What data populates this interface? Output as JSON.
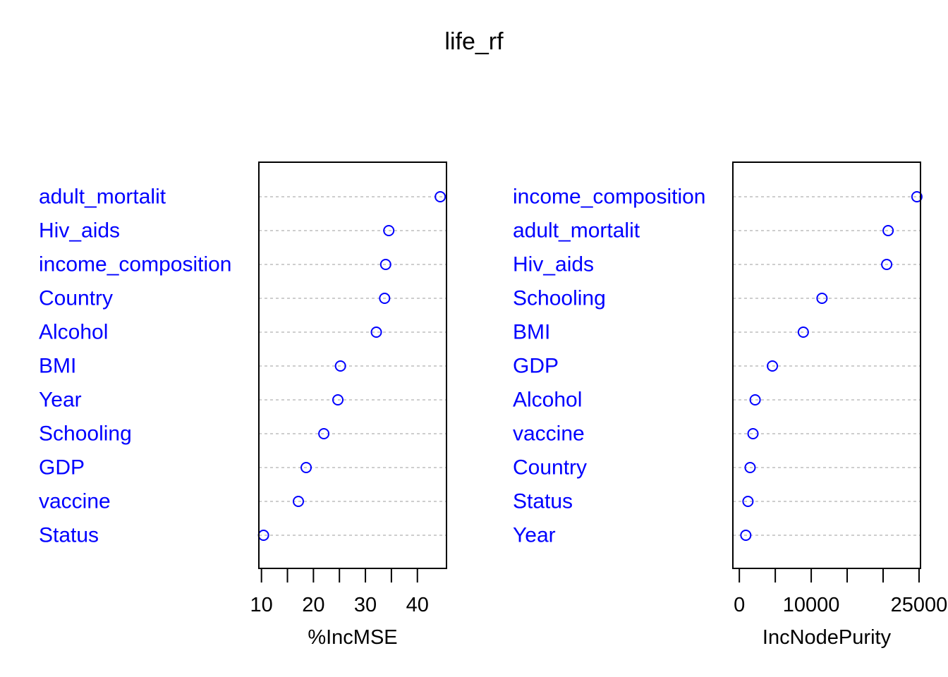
{
  "chart_data": {
    "title": "life_rf",
    "colors": {
      "labels": "#0000ff",
      "points": "#0000ff",
      "dotted_lines": "#bebebe",
      "axes": "#000000"
    },
    "panels": [
      {
        "type": "scatter",
        "variant": "dotchart",
        "xlabel": "%IncMSE",
        "xlim": [
          9.5,
          45.6
        ],
        "xticks": [
          10,
          15,
          20,
          25,
          30,
          35,
          40
        ],
        "xtick_labels": [
          "10",
          "",
          "20",
          "",
          "30",
          "",
          "40"
        ],
        "categories": [
          "adult_mortalit",
          "Hiv_aids",
          "income_composition",
          "Country",
          "Alcohol",
          "BMI",
          "Year",
          "Schooling",
          "GDP",
          "vaccine",
          "Status"
        ],
        "values": [
          44.4,
          34.5,
          33.9,
          33.7,
          32.1,
          25.2,
          24.7,
          22.0,
          18.6,
          17.1,
          10.4
        ]
      },
      {
        "type": "scatter",
        "variant": "dotchart",
        "xlabel": "IncNodePurity",
        "xlim": [
          -900,
          25200
        ],
        "xticks": [
          0,
          5000,
          10000,
          15000,
          20000,
          25000
        ],
        "xtick_labels": [
          "0",
          "",
          "10000",
          "",
          "",
          "25000"
        ],
        "categories": [
          "income_composition",
          "adult_mortalit",
          "Hiv_aids",
          "Schooling",
          "BMI",
          "GDP",
          "Alcohol",
          "vaccine",
          "Country",
          "Status",
          "Year"
        ],
        "values": [
          24700,
          20700,
          20500,
          11500,
          8900,
          4600,
          2200,
          1900,
          1500,
          1200,
          900
        ]
      }
    ]
  }
}
